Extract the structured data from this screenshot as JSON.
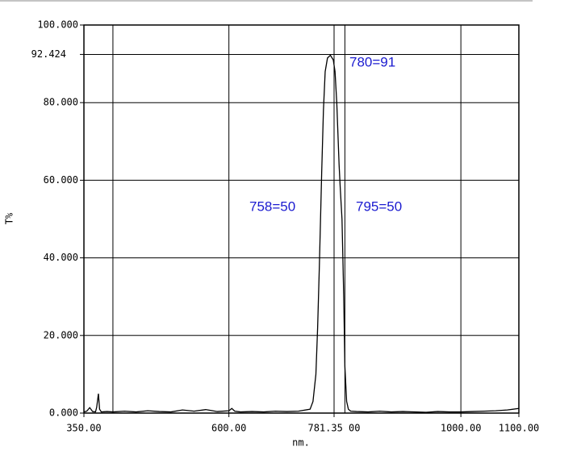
{
  "chart_data": {
    "type": "line",
    "x_label": "nm.",
    "y_label": "T%",
    "annotations": [
      "780=91",
      "758=50",
      "795=50"
    ],
    "xlim": [
      350,
      1100
    ],
    "ylim": [
      0,
      100
    ],
    "xticks": [
      {
        "value": 350,
        "label": "350.00"
      },
      {
        "value": 600,
        "label": "600.00"
      },
      {
        "value": 781.35,
        "label": "781.35 00"
      },
      {
        "value": 1000,
        "label": "1000.00"
      },
      {
        "value": 1100,
        "label": "1100.00"
      }
    ],
    "xgrid": [
      400,
      600,
      781.35,
      800,
      1000
    ],
    "yticks": [
      {
        "value": 0,
        "label": "0.000"
      },
      {
        "value": 20,
        "label": "20.000"
      },
      {
        "value": 40,
        "label": "40.000"
      },
      {
        "value": 60,
        "label": "60.000"
      },
      {
        "value": 80,
        "label": "80.000"
      },
      {
        "value": 92.424,
        "label": "92.424"
      },
      {
        "value": 100,
        "label": "100.000"
      }
    ],
    "grid": true,
    "series": [
      {
        "color": "#000000",
        "x": [
          350,
          355,
          360,
          365,
          370,
          372,
          375,
          377,
          380,
          390,
          400,
          420,
          440,
          460,
          480,
          500,
          520,
          540,
          560,
          580,
          600,
          605,
          610,
          620,
          640,
          660,
          680,
          700,
          720,
          740,
          745,
          750,
          753,
          756,
          758,
          760,
          763,
          766,
          770,
          775,
          780,
          783,
          786,
          788,
          790,
          792,
          795,
          798,
          800,
          803,
          806,
          810,
          820,
          840,
          860,
          880,
          900,
          920,
          940,
          960,
          980,
          1000,
          1020,
          1040,
          1060,
          1080,
          1100
        ],
        "values": [
          0.3,
          0.5,
          1.4,
          0.4,
          0.3,
          1.5,
          5.0,
          1.0,
          0.3,
          0.4,
          0.3,
          0.5,
          0.3,
          0.6,
          0.4,
          0.3,
          0.8,
          0.5,
          0.9,
          0.4,
          0.6,
          1.2,
          0.5,
          0.3,
          0.4,
          0.3,
          0.5,
          0.4,
          0.5,
          1.0,
          3.0,
          10.0,
          22.0,
          38.0,
          50.0,
          62.0,
          78.0,
          88.0,
          91.5,
          92.2,
          91.0,
          88.0,
          80.0,
          72.0,
          64.0,
          58.0,
          50.0,
          30.0,
          12.0,
          3.0,
          1.0,
          0.5,
          0.4,
          0.3,
          0.5,
          0.3,
          0.4,
          0.3,
          0.2,
          0.4,
          0.3,
          0.3,
          0.4,
          0.5,
          0.6,
          0.8,
          1.2
        ]
      }
    ]
  }
}
